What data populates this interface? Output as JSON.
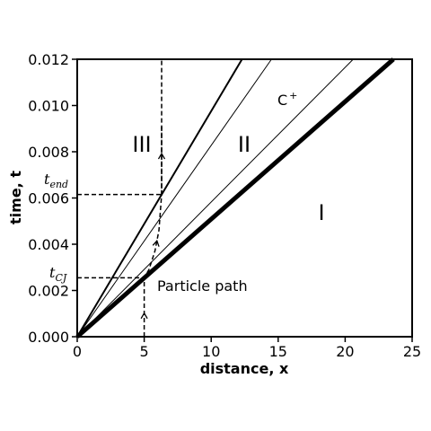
{
  "chart_data": {
    "type": "line",
    "title": "",
    "xlabel": "distance, x",
    "ylabel": "time, t",
    "xlim": [
      0,
      25
    ],
    "ylim": [
      0,
      0.012
    ],
    "xticks": [
      "0",
      "5",
      "10",
      "15",
      "20",
      "25"
    ],
    "yticks": [
      "0.000",
      "0.002",
      "0.004",
      "0.006",
      "0.008",
      "0.010",
      "0.012"
    ],
    "grid": false,
    "lines": [
      {
        "x": [
          0,
          12.3
        ],
        "y": [
          0,
          0.012
        ],
        "style": "medium"
      },
      {
        "x": [
          0,
          14.5
        ],
        "y": [
          0,
          0.012
        ],
        "style": "thin"
      },
      {
        "x": [
          0,
          20.6
        ],
        "y": [
          0,
          0.012
        ],
        "style": "thin"
      },
      {
        "x": [
          0,
          23.6
        ],
        "y": [
          0,
          0.012
        ],
        "style": "thick"
      }
    ],
    "reference_lines": [
      {
        "orientation": "horizontal",
        "y": 0.00615,
        "x_from": 0,
        "x_to": 6.3
      },
      {
        "orientation": "horizontal",
        "y": 0.00255,
        "x_from": 0,
        "x_to": 5.0
      },
      {
        "orientation": "vertical",
        "x": 6.3,
        "y_from": 0.00615,
        "y_to": 0.012
      }
    ],
    "particle_path": {
      "x": [
        5.0,
        5.0,
        5.35,
        5.8,
        6.1,
        6.3,
        6.3
      ],
      "y": [
        0,
        0.00255,
        0.0029,
        0.0037,
        0.0046,
        0.00615,
        0.0091
      ]
    },
    "annotations": {
      "region_1": "I",
      "region_2": "II",
      "region_3": "III",
      "characteristic": "C",
      "characteristic_sup": "+",
      "particle": "Particle path",
      "t_end": "t",
      "t_end_sub": "end",
      "t_cj": "t",
      "t_cj_sub": "CJ"
    }
  }
}
